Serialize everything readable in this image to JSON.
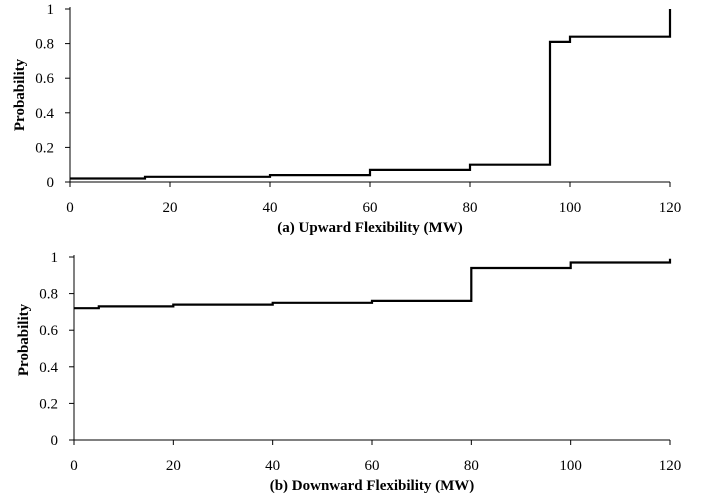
{
  "chart_data": [
    {
      "type": "line",
      "step": true,
      "title": "",
      "xlabel": "(a) Upward Flexibility (MW)",
      "ylabel": "Probability",
      "xlim": [
        0,
        120
      ],
      "ylim": [
        0,
        1
      ],
      "x_ticks": [
        "0",
        "20",
        "40",
        "60",
        "80",
        "100",
        "120"
      ],
      "y_ticks": [
        "0",
        "0.2",
        "0.4",
        "0.6",
        "0.8",
        "1"
      ],
      "grid": false,
      "series": [
        {
          "points": [
            [
              0,
              0.02
            ],
            [
              15,
              0.02
            ],
            [
              15,
              0.03
            ],
            [
              40,
              0.03
            ],
            [
              40,
              0.04
            ],
            [
              60,
              0.04
            ],
            [
              60,
              0.07
            ],
            [
              80,
              0.07
            ],
            [
              80,
              0.1
            ],
            [
              96,
              0.1
            ],
            [
              96,
              0.81
            ],
            [
              100,
              0.81
            ],
            [
              100,
              0.84
            ],
            [
              120,
              0.84
            ],
            [
              120,
              1.0
            ]
          ]
        }
      ]
    },
    {
      "type": "line",
      "step": true,
      "title": "",
      "xlabel": "(b) Downward Flexibility (MW)",
      "ylabel": "Probability",
      "xlim": [
        0,
        120
      ],
      "ylim": [
        0,
        1
      ],
      "x_ticks": [
        "0",
        "20",
        "40",
        "60",
        "80",
        "100",
        "120"
      ],
      "y_ticks": [
        "0",
        "0.2",
        "0.4",
        "0.6",
        "0.8",
        "1"
      ],
      "grid": false,
      "series": [
        {
          "points": [
            [
              0,
              0.72
            ],
            [
              5,
              0.72
            ],
            [
              5,
              0.73
            ],
            [
              20,
              0.73
            ],
            [
              20,
              0.74
            ],
            [
              40,
              0.74
            ],
            [
              40,
              0.75
            ],
            [
              60,
              0.75
            ],
            [
              60,
              0.76
            ],
            [
              80,
              0.76
            ],
            [
              80,
              0.94
            ],
            [
              100,
              0.94
            ],
            [
              100,
              0.97
            ],
            [
              120,
              0.97
            ],
            [
              120,
              0.99
            ]
          ]
        }
      ]
    }
  ]
}
